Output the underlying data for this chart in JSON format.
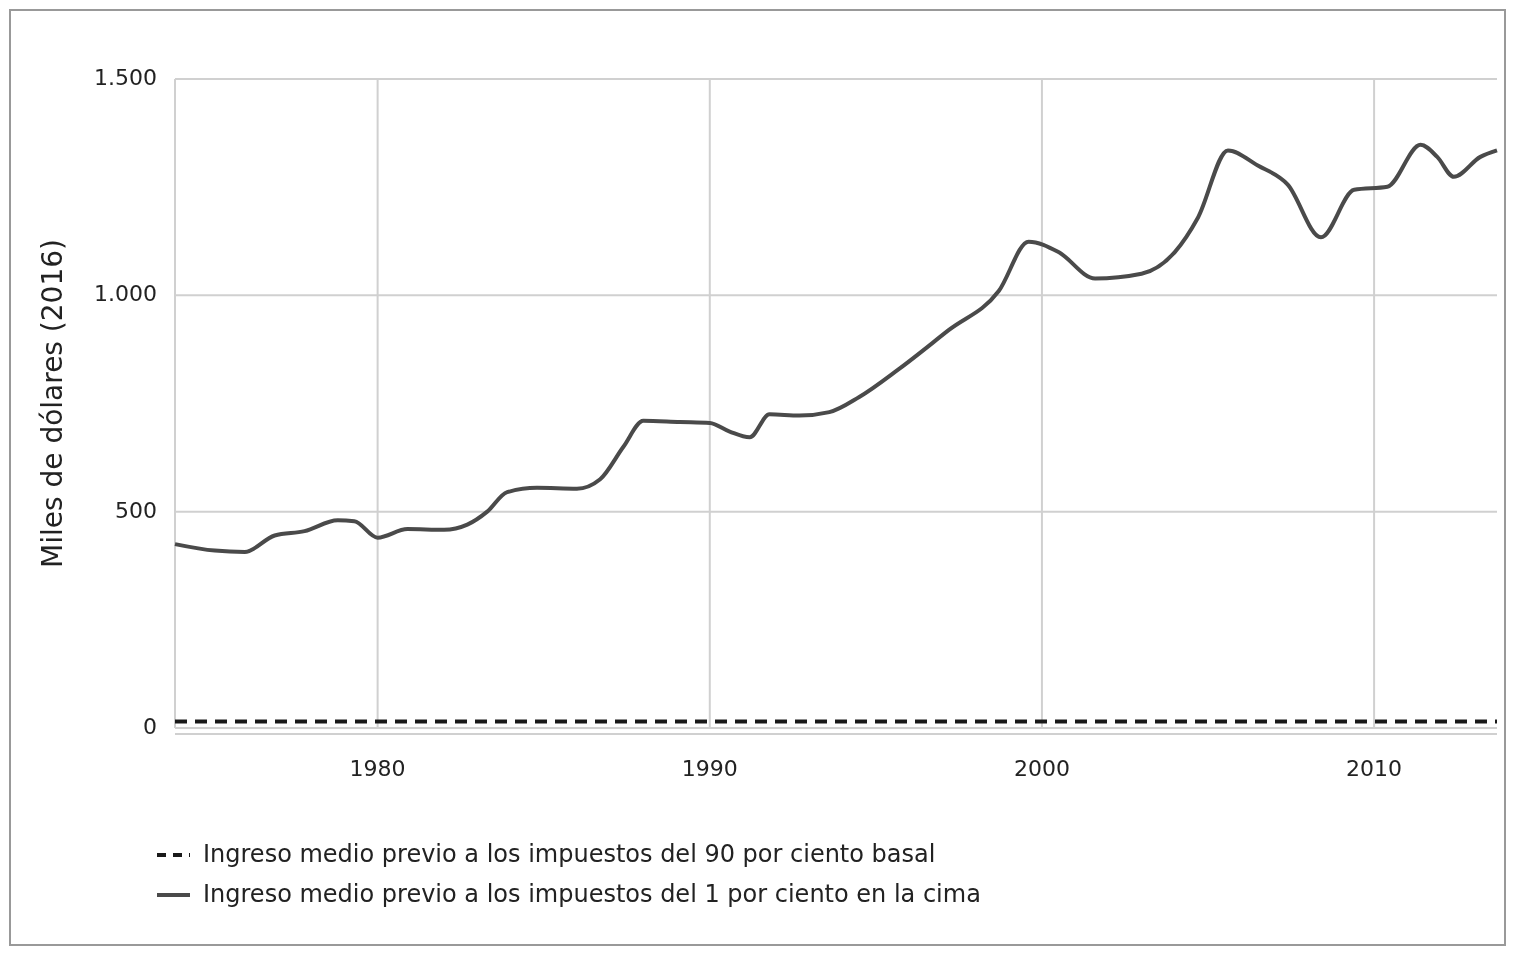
{
  "chart_data": {
    "type": "line",
    "ylabel": "Miles de dólares (2016)",
    "xlim": [
      1973.9,
      2013.7
    ],
    "xticks": [
      1980,
      1990,
      2000,
      2010
    ],
    "ylim": [
      0,
      1500
    ],
    "yticks": [
      {
        "value": 0,
        "label": "0"
      },
      {
        "value": 500,
        "label": "500"
      },
      {
        "value": 1000,
        "label": "1.000"
      },
      {
        "value": 1500,
        "label": "1.500"
      }
    ],
    "grid": true,
    "legend": "bottom",
    "series": [
      {
        "name": "Ingreso medio previo a los impuestos del 90 por ciento basal",
        "color": "#1a1a1a",
        "line_style": "dashed",
        "x": [
          1973.9,
          1980,
          1990,
          2000,
          2010,
          2013.7
        ],
        "values": [
          15,
          15,
          15,
          15,
          15,
          15
        ]
      },
      {
        "name": "Ingreso medio previo a los impuestos del 1 por ciento en la cima",
        "color": "#4a4a4a",
        "line_style": "solid",
        "x": [
          1973.9,
          1975.1,
          1976,
          1976.9,
          1977.8,
          1978.8,
          1979.3,
          1980,
          1980.9,
          1982,
          1982.7,
          1983.3,
          1983.9,
          1984.8,
          1986,
          1986.7,
          1987.4,
          1988,
          1989.1,
          1990,
          1990.6,
          1991.2,
          1991.8,
          1992.7,
          1993.6,
          1994.5,
          1995.7,
          1997.2,
          1998.7,
          1999.6,
          2000.5,
          2001.6,
          2003,
          2004,
          2004.7,
          2005.6,
          2006.5,
          2007.4,
          2008.4,
          2009.4,
          2010.4,
          2011.4,
          2011.9,
          2012.4,
          2013.2,
          2013.7
        ],
        "values": [
          425,
          410,
          407,
          445,
          455,
          480,
          478,
          440,
          460,
          458,
          470,
          500,
          545,
          555,
          553,
          575,
          650,
          710,
          707,
          705,
          685,
          672,
          725,
          722,
          730,
          765,
          830,
          920,
          1010,
          1124,
          1100,
          1039,
          1050,
          1100,
          1180,
          1335,
          1300,
          1256,
          1134,
          1244,
          1251,
          1348,
          1320,
          1274,
          1320,
          1335
        ]
      }
    ]
  }
}
